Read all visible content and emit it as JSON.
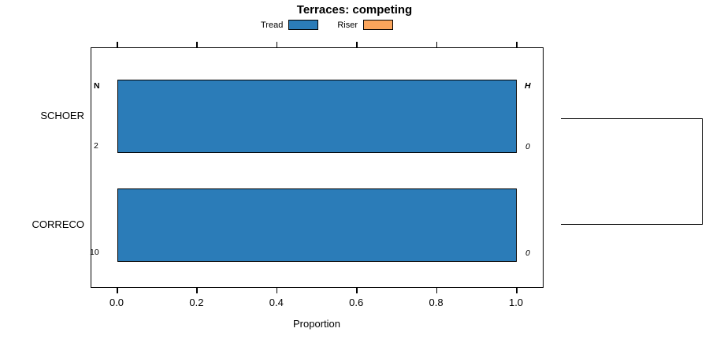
{
  "chart_data": {
    "type": "bar",
    "orientation": "horizontal",
    "title": "Terraces: competing",
    "xlabel": "Proportion",
    "xlim": [
      0.0,
      1.0
    ],
    "x_ticks": [
      0.0,
      0.2,
      0.4,
      0.6,
      0.8,
      1.0
    ],
    "x_tick_labels": [
      "0.0",
      "0.2",
      "0.4",
      "0.6",
      "0.8",
      "1.0"
    ],
    "categories": [
      "SCHOER",
      "CORRECO"
    ],
    "series": [
      {
        "name": "Tread",
        "color": "#2b7cb8",
        "values": [
          1.0,
          1.0
        ]
      },
      {
        "name": "Riser",
        "color": "#fba55c",
        "values": [
          0.0,
          0.0
        ]
      }
    ],
    "annotations": {
      "left_header": "N",
      "right_header": "H",
      "left_values": [
        "2",
        "10"
      ],
      "right_values": [
        "0",
        "0"
      ]
    },
    "legend_position": "top",
    "grid": false
  }
}
